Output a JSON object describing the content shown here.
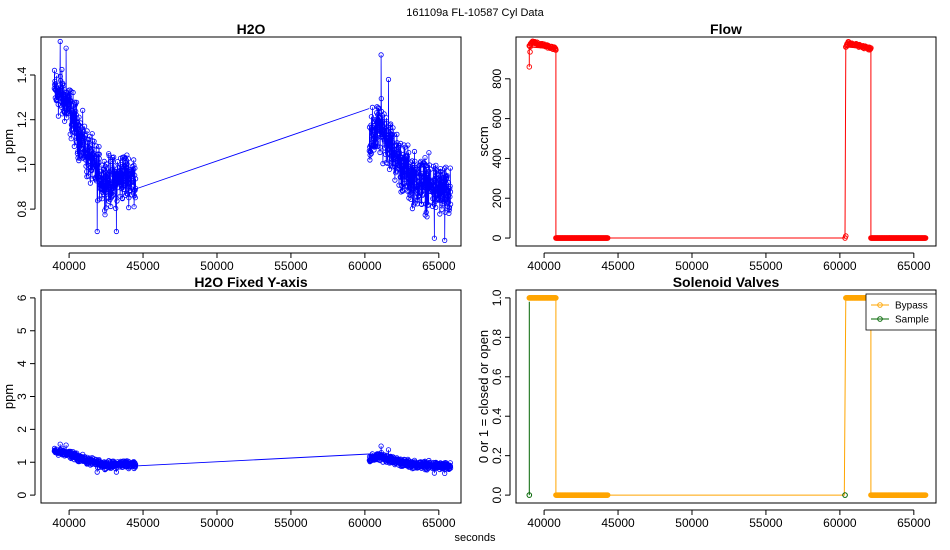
{
  "figure": {
    "suptitle": "161109a    FL-10587   Cyl Data",
    "xlabel": "seconds"
  },
  "colors": {
    "h2o": "#0000ff",
    "flow": "#ff0000",
    "bypass": "#ffa500",
    "sample": "#006400"
  },
  "chart_data": [
    {
      "id": "h2o",
      "type": "line",
      "title": "H2O",
      "ylabel": "ppm",
      "xlim": [
        38100,
        66500
      ],
      "ylim": [
        0.635,
        1.57
      ],
      "xticks": [
        40000,
        45000,
        50000,
        55000,
        60000,
        65000
      ],
      "xtick_labels": [
        "40000",
        "45000",
        "50000",
        "55000",
        "60000",
        "65000"
      ],
      "yticks": [
        0.8,
        1.0,
        1.2,
        1.4
      ],
      "ytick_labels": [
        "0.8",
        "1.0",
        "1.2",
        "1.4"
      ],
      "series": [
        {
          "color": "#0000ff",
          "markers": "open-circle",
          "segments": [
            {
              "x_start": 39000,
              "x_end": 44500,
              "profile": [
                [
                  39000,
                  1.33
                ],
                [
                  39600,
                  1.3
                ],
                [
                  40000,
                  1.25
                ],
                [
                  40600,
                  1.15
                ],
                [
                  41200,
                  1.05
                ],
                [
                  41800,
                  0.98
                ],
                [
                  42300,
                  0.93
                ],
                [
                  43000,
                  0.92
                ],
                [
                  43700,
                  0.95
                ],
                [
                  44500,
                  0.94
                ]
              ],
              "spread": 0.085,
              "spikes": [
                [
                  39400,
                  1.55
                ],
                [
                  39800,
                  1.52
                ],
                [
                  41900,
                  0.7
                ],
                [
                  43200,
                  0.7
                ]
              ]
            },
            {
              "x_start": 60300,
              "x_end": 65800,
              "profile": [
                [
                  60300,
                  1.1
                ],
                [
                  60900,
                  1.16
                ],
                [
                  61300,
                  1.15
                ],
                [
                  62000,
                  1.05
                ],
                [
                  62600,
                  0.98
                ],
                [
                  63200,
                  0.94
                ],
                [
                  63800,
                  0.92
                ],
                [
                  64500,
                  0.9
                ],
                [
                  65200,
                  0.88
                ],
                [
                  65800,
                  0.86
                ]
              ],
              "spread": 0.09,
              "spikes": [
                [
                  61100,
                  1.49
                ],
                [
                  61600,
                  1.38
                ],
                [
                  64700,
                  0.67
                ],
                [
                  65400,
                  0.66
                ]
              ]
            }
          ],
          "connector": [
            [
              44500,
              0.89
            ],
            [
              60300,
              1.25
            ]
          ]
        }
      ]
    },
    {
      "id": "flow",
      "type": "line",
      "title": "Flow",
      "ylabel": "sccm",
      "xlim": [
        38100,
        66500
      ],
      "ylim": [
        -40,
        1010
      ],
      "xticks": [
        40000,
        45000,
        50000,
        55000,
        60000,
        65000
      ],
      "xtick_labels": [
        "40000",
        "45000",
        "50000",
        "55000",
        "60000",
        "65000"
      ],
      "yticks": [
        0,
        200,
        400,
        600,
        800
      ],
      "ytick_labels": [
        "0",
        "200",
        "400",
        "600",
        "800"
      ],
      "series": [
        {
          "color": "#ff0000",
          "markers": "open-circle",
          "runs": [
            {
              "x_start": 39000,
              "x_end": 40800,
              "y_start": 960,
              "y_peak": 985,
              "y_end": 950
            },
            {
              "x_start": 40800,
              "x_end": 44300,
              "y_start": 0,
              "y_peak": 0,
              "y_end": 0
            },
            {
              "x_start": 60400,
              "x_end": 62100,
              "y_start": 960,
              "y_peak": 980,
              "y_end": 950
            },
            {
              "x_start": 62100,
              "x_end": 65800,
              "y_start": 0,
              "y_peak": 0,
              "y_end": 0
            }
          ],
          "isolated_points": [
            [
              39000,
              860
            ],
            [
              39050,
              935
            ],
            [
              60350,
              0
            ],
            [
              60400,
              10
            ]
          ],
          "path": [
            [
              39000,
              860
            ],
            [
              39000,
              960
            ],
            [
              40800,
              950
            ],
            [
              40800,
              0
            ],
            [
              44300,
              0
            ],
            [
              60300,
              0
            ],
            [
              60350,
              10
            ],
            [
              60400,
              960
            ],
            [
              62100,
              950
            ],
            [
              62100,
              0
            ],
            [
              65800,
              0
            ]
          ]
        }
      ]
    },
    {
      "id": "h2o_fixed",
      "type": "line",
      "title": "H2O Fixed Y-axis",
      "ylabel": "ppm",
      "xlim": [
        38100,
        66500
      ],
      "ylim": [
        -0.24,
        6.24
      ],
      "xticks": [
        40000,
        45000,
        50000,
        55000,
        60000,
        65000
      ],
      "xtick_labels": [
        "40000",
        "45000",
        "50000",
        "55000",
        "60000",
        "65000"
      ],
      "yticks": [
        0,
        1,
        2,
        3,
        4,
        5,
        6
      ],
      "ytick_labels": [
        "0",
        "1",
        "2",
        "3",
        "4",
        "5",
        "6"
      ],
      "series": [
        {
          "color": "#0000ff",
          "markers": "open-circle",
          "same_data_as": "h2o"
        }
      ]
    },
    {
      "id": "valves",
      "type": "line",
      "title": "Solenoid Valves",
      "ylabel": "0 or 1 = closed or open",
      "xlim": [
        38100,
        66500
      ],
      "ylim": [
        -0.04,
        1.04
      ],
      "xticks": [
        40000,
        45000,
        50000,
        55000,
        60000,
        65000
      ],
      "xtick_labels": [
        "40000",
        "45000",
        "50000",
        "55000",
        "60000",
        "65000"
      ],
      "yticks": [
        0.0,
        0.2,
        0.4,
        0.6,
        0.8,
        1.0
      ],
      "ytick_labels": [
        "0.0",
        "0.2",
        "0.4",
        "0.6",
        "0.8",
        "1.0"
      ],
      "legend": "top-right",
      "series": [
        {
          "name": "Bypass",
          "color": "#ffa500",
          "runs": [
            {
              "x_start": 39000,
              "x_end": 40800,
              "y": 1
            },
            {
              "x_start": 40800,
              "x_end": 44300,
              "y": 0
            },
            {
              "x_start": 60400,
              "x_end": 62100,
              "y": 1
            },
            {
              "x_start": 62100,
              "x_end": 65800,
              "y": 0
            }
          ],
          "path": [
            [
              39000,
              1
            ],
            [
              40800,
              1
            ],
            [
              40800,
              0
            ],
            [
              44300,
              0
            ],
            [
              60300,
              0
            ],
            [
              60400,
              1
            ],
            [
              62100,
              1
            ],
            [
              62100,
              0
            ],
            [
              65800,
              0
            ]
          ]
        },
        {
          "name": "Sample",
          "color": "#006400",
          "points": [
            [
              39000,
              0
            ],
            [
              60350,
              0
            ]
          ],
          "path": [
            [
              39000,
              0
            ],
            [
              39000,
              0.98
            ]
          ]
        }
      ]
    }
  ]
}
